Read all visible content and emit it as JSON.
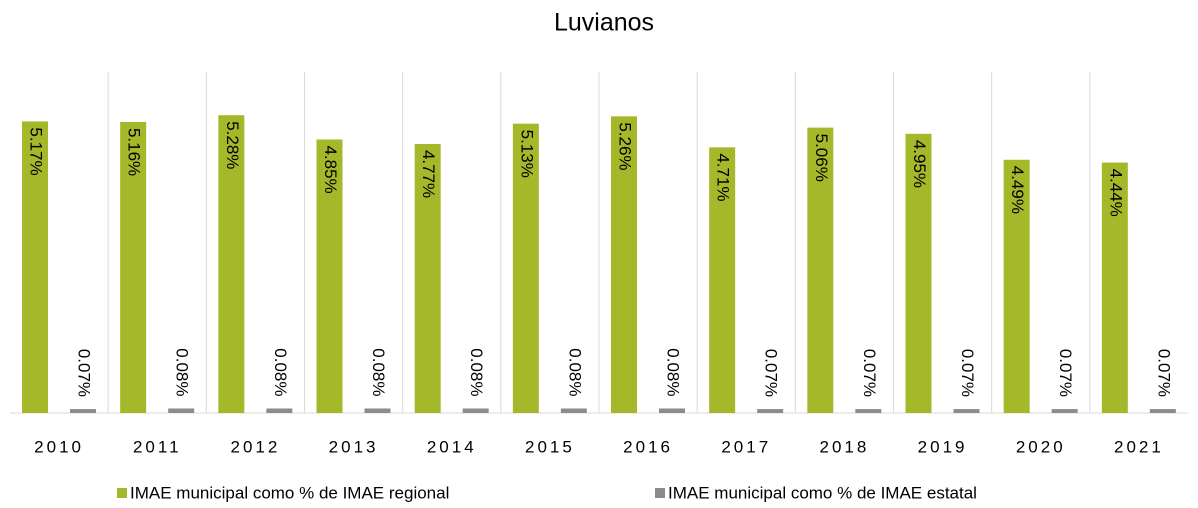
{
  "chart_data": {
    "type": "bar",
    "title": "Luvianos",
    "categories": [
      "2010",
      "2011",
      "2012",
      "2013",
      "2014",
      "2015",
      "2016",
      "2017",
      "2018",
      "2019",
      "2020",
      "2021"
    ],
    "series": [
      {
        "name": "IMAE municipal como % de IMAE regional",
        "color": "#a5b82a",
        "values": [
          5.17,
          5.16,
          5.28,
          4.85,
          4.77,
          5.13,
          5.26,
          4.71,
          5.06,
          4.95,
          4.49,
          4.44
        ],
        "value_labels": [
          "5.17%",
          "5.16%",
          "5.28%",
          "4.85%",
          "4.77%",
          "5.13%",
          "5.26%",
          "4.71%",
          "5.06%",
          "4.95%",
          "4.49%",
          "4.44%"
        ]
      },
      {
        "name": "IMAE municipal como % de IMAE estatal",
        "color": "#8c8c8c",
        "values": [
          0.07,
          0.08,
          0.08,
          0.08,
          0.08,
          0.08,
          0.08,
          0.07,
          0.07,
          0.07,
          0.07,
          0.07
        ],
        "value_labels": [
          "0.07%",
          "0.08%",
          "0.08%",
          "0.08%",
          "0.08%",
          "0.08%",
          "0.08%",
          "0.07%",
          "0.07%",
          "0.07%",
          "0.07%",
          "0.07%"
        ]
      }
    ],
    "legend": "bottom"
  }
}
